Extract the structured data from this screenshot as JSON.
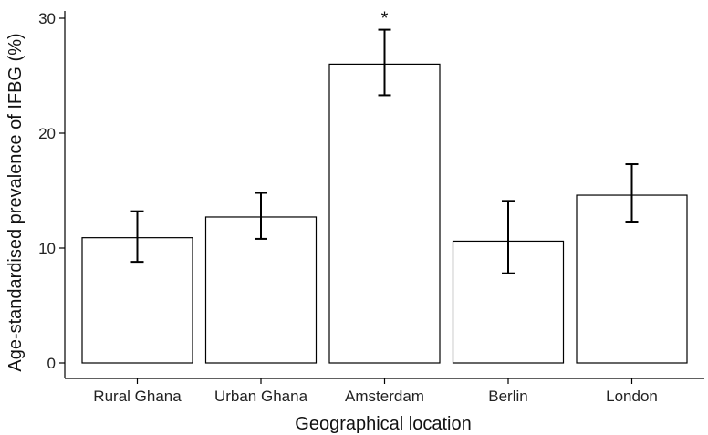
{
  "chart_data": {
    "type": "bar",
    "title": "",
    "xlabel": "Geographical location",
    "ylabel": "Age-standardised prevalence of IFBG (%)",
    "categories": [
      "Rural Ghana",
      "Urban Ghana",
      "Amsterdam",
      "Berlin",
      "London"
    ],
    "values": [
      10.9,
      12.7,
      26.0,
      10.6,
      14.6
    ],
    "error_low": [
      8.8,
      10.8,
      23.3,
      7.8,
      12.3
    ],
    "error_high": [
      13.2,
      14.8,
      29.0,
      14.1,
      17.3
    ],
    "annotations": [
      {
        "category": "Amsterdam",
        "text": "*"
      }
    ],
    "ylim": [
      0,
      30
    ],
    "yticks": [
      "0",
      "10",
      "20",
      "30"
    ],
    "grid": false,
    "legend": "none",
    "bar_fill": "#ffffff",
    "bar_stroke": "#000000"
  }
}
